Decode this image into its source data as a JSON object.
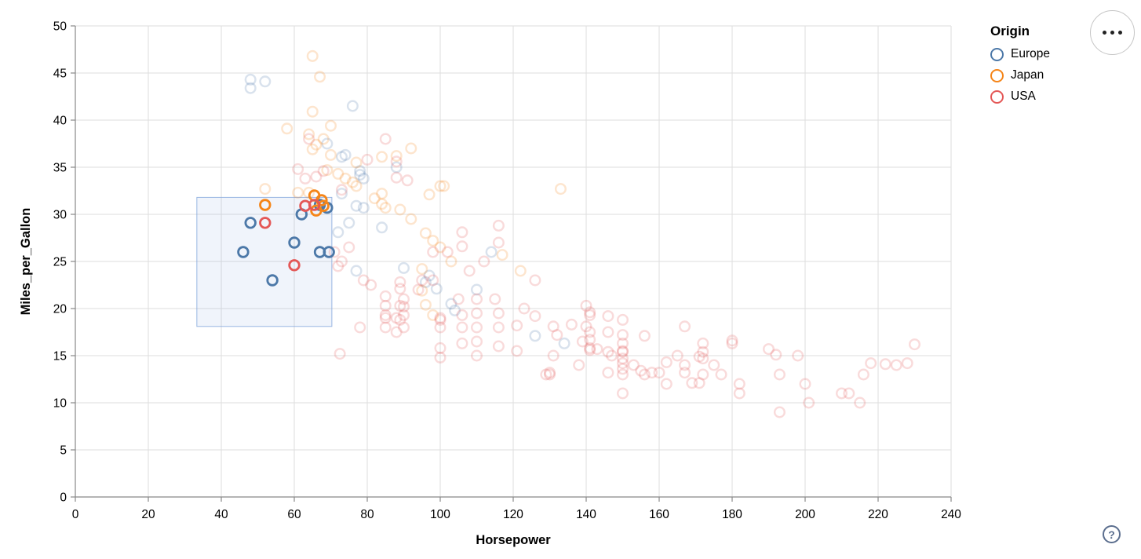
{
  "chart_data": {
    "type": "scatter",
    "xlabel": "Horsepower",
    "ylabel": "Miles_per_Gallon",
    "xlim": [
      0,
      240
    ],
    "ylim": [
      0,
      50
    ],
    "xticks": [
      0,
      20,
      40,
      60,
      80,
      100,
      120,
      140,
      160,
      180,
      200,
      220,
      240
    ],
    "yticks": [
      0,
      5,
      10,
      15,
      20,
      25,
      30,
      35,
      40,
      45,
      50
    ],
    "grid": true,
    "legend": {
      "title": "Origin",
      "position": "top-right",
      "entries": [
        {
          "label": "Europe",
          "color": "#4c78a8"
        },
        {
          "label": "Japan",
          "color": "#f58518"
        },
        {
          "label": "USA",
          "color": "#e45756"
        }
      ]
    },
    "brush": {
      "x": [
        33.3,
        70.3
      ],
      "y": [
        18.1,
        31.8
      ],
      "fill": "rgba(130,165,220,0.12)",
      "stroke": "rgba(130,165,220,0.8)"
    },
    "point_style": {
      "radius": 6.3,
      "stroke_width": 2.4,
      "unselected_opacity": 0.21
    },
    "series": [
      {
        "name": "Europe",
        "color": "#4c78a8",
        "selected": [
          [
            46,
            26
          ],
          [
            48,
            29.1
          ],
          [
            54,
            23
          ],
          [
            60,
            27
          ],
          [
            62,
            30
          ],
          [
            67,
            26
          ],
          [
            69.5,
            26
          ],
          [
            67,
            31
          ],
          [
            69,
            30.7
          ]
        ],
        "unselected": [
          [
            48,
            44.3
          ],
          [
            52,
            44.1
          ],
          [
            48,
            43.4
          ],
          [
            76,
            41.5
          ],
          [
            69,
            37.5
          ],
          [
            74,
            36.3
          ],
          [
            73,
            36.1
          ],
          [
            88,
            35
          ],
          [
            78,
            34.6
          ],
          [
            78,
            34.2
          ],
          [
            79,
            33.8
          ],
          [
            73,
            32.2
          ],
          [
            77,
            30.9
          ],
          [
            79,
            30.7
          ],
          [
            75,
            29.1
          ],
          [
            72,
            28.1
          ],
          [
            84,
            28.6
          ],
          [
            114,
            26
          ],
          [
            96,
            22.8
          ],
          [
            99,
            22.1
          ],
          [
            103,
            20.5
          ],
          [
            104,
            19.8
          ],
          [
            77,
            24
          ],
          [
            90,
            24.3
          ],
          [
            97,
            23.5
          ],
          [
            110,
            22
          ],
          [
            126,
            17.1
          ],
          [
            134,
            16.3
          ]
        ]
      },
      {
        "name": "Japan",
        "color": "#f58518",
        "selected": [
          [
            52,
            31
          ],
          [
            65.5,
            32
          ],
          [
            67.5,
            31.5
          ],
          [
            68,
            30.9
          ],
          [
            66,
            30.4
          ]
        ],
        "unselected": [
          [
            65,
            46.8
          ],
          [
            67,
            44.6
          ],
          [
            65,
            40.9
          ],
          [
            70,
            39.4
          ],
          [
            58,
            39.1
          ],
          [
            64,
            38.5
          ],
          [
            66,
            37.4
          ],
          [
            68,
            38
          ],
          [
            65,
            36.9
          ],
          [
            70,
            36.3
          ],
          [
            92,
            37
          ],
          [
            88,
            36.2
          ],
          [
            84,
            36.1
          ],
          [
            77,
            35.5
          ],
          [
            69,
            34.7
          ],
          [
            72,
            34.3
          ],
          [
            74,
            33.8
          ],
          [
            76,
            33.4
          ],
          [
            77,
            33
          ],
          [
            100,
            33
          ],
          [
            101,
            33
          ],
          [
            97,
            32.1
          ],
          [
            133,
            32.7
          ],
          [
            61,
            32.3
          ],
          [
            64,
            32.3
          ],
          [
            52,
            32.7
          ],
          [
            82,
            31.7
          ],
          [
            84,
            32.2
          ],
          [
            84,
            31.1
          ],
          [
            85,
            30.7
          ],
          [
            89,
            30.5
          ],
          [
            92,
            29.5
          ],
          [
            98,
            27.2
          ],
          [
            96,
            28
          ],
          [
            100,
            26.5
          ],
          [
            103,
            25
          ],
          [
            95,
            24.2
          ],
          [
            117,
            25.7
          ],
          [
            122,
            24
          ],
          [
            95,
            21.9
          ],
          [
            96,
            20.4
          ],
          [
            98,
            19.3
          ]
        ]
      },
      {
        "name": "USA",
        "color": "#e45756",
        "selected": [
          [
            52,
            29.1
          ],
          [
            60,
            24.6
          ],
          [
            63,
            30.9
          ],
          [
            65.5,
            31
          ]
        ],
        "unselected": [
          [
            64,
            38
          ],
          [
            85,
            38
          ],
          [
            80,
            35.8
          ],
          [
            88,
            35.6
          ],
          [
            61,
            34.8
          ],
          [
            63,
            33.8
          ],
          [
            66,
            34
          ],
          [
            68,
            34.6
          ],
          [
            88,
            33.9
          ],
          [
            91,
            33.6
          ],
          [
            73,
            32.6
          ],
          [
            106,
            28.1
          ],
          [
            106,
            26.6
          ],
          [
            116,
            28.8
          ],
          [
            116,
            27
          ],
          [
            71,
            26
          ],
          [
            73,
            25
          ],
          [
            75,
            26.5
          ],
          [
            72,
            24.5
          ],
          [
            98,
            26
          ],
          [
            102,
            26
          ],
          [
            108,
            24
          ],
          [
            112,
            25
          ],
          [
            79,
            23
          ],
          [
            81,
            22.5
          ],
          [
            85,
            21.3
          ],
          [
            85,
            20.3
          ],
          [
            85,
            19.3
          ],
          [
            85,
            19
          ],
          [
            85,
            18
          ],
          [
            78,
            18
          ],
          [
            89,
            22.8
          ],
          [
            89,
            22.1
          ],
          [
            90,
            21
          ],
          [
            89,
            20.3
          ],
          [
            90,
            19.3
          ],
          [
            89,
            18.8
          ],
          [
            90,
            18
          ],
          [
            90,
            20.2
          ],
          [
            88,
            19
          ],
          [
            88,
            17.5
          ],
          [
            94,
            22
          ],
          [
            95,
            23
          ],
          [
            98,
            23
          ],
          [
            100,
            19
          ],
          [
            100,
            18.8
          ],
          [
            100,
            18
          ],
          [
            100,
            15.8
          ],
          [
            100,
            14.8
          ],
          [
            106,
            19.3
          ],
          [
            106,
            18
          ],
          [
            106,
            16.3
          ],
          [
            105,
            21
          ],
          [
            110,
            21
          ],
          [
            110,
            19.5
          ],
          [
            110,
            18
          ],
          [
            110,
            16.5
          ],
          [
            110,
            15
          ],
          [
            115,
            21
          ],
          [
            116,
            19.5
          ],
          [
            116,
            18
          ],
          [
            116,
            16
          ],
          [
            72.5,
            15.2
          ],
          [
            121,
            15.5
          ],
          [
            121,
            18.2
          ],
          [
            123,
            20
          ],
          [
            126,
            23
          ],
          [
            126,
            19.2
          ],
          [
            129,
            13
          ],
          [
            130,
            13.2
          ],
          [
            130,
            13
          ],
          [
            131,
            18.1
          ],
          [
            131,
            15
          ],
          [
            132,
            17.2
          ],
          [
            136,
            18.3
          ],
          [
            138,
            14
          ],
          [
            139,
            16.5
          ],
          [
            140,
            20.3
          ],
          [
            140,
            18.1
          ],
          [
            141,
            19.6
          ],
          [
            141,
            19.3
          ],
          [
            141,
            17.5
          ],
          [
            141,
            16.7
          ],
          [
            141,
            15.8
          ],
          [
            141,
            15.6
          ],
          [
            143,
            15.7
          ],
          [
            146,
            19.2
          ],
          [
            146,
            17.5
          ],
          [
            146,
            15.4
          ],
          [
            147,
            15
          ],
          [
            146,
            13.2
          ],
          [
            150,
            18.8
          ],
          [
            150,
            17.2
          ],
          [
            150,
            16.3
          ],
          [
            150,
            15.5
          ],
          [
            150,
            15.4
          ],
          [
            150,
            14.7
          ],
          [
            150,
            14.2
          ],
          [
            150,
            13.6
          ],
          [
            150,
            13
          ],
          [
            150,
            11
          ],
          [
            153,
            14
          ],
          [
            155,
            13.4
          ],
          [
            156,
            17.1
          ],
          [
            156,
            13
          ],
          [
            158,
            13.2
          ],
          [
            160,
            13.2
          ],
          [
            162,
            14.3
          ],
          [
            162,
            12
          ],
          [
            165,
            15
          ],
          [
            167,
            14
          ],
          [
            167,
            13.2
          ],
          [
            167,
            18.1
          ],
          [
            169,
            12.1
          ],
          [
            171,
            14.9
          ],
          [
            171,
            12.1
          ],
          [
            172,
            16.3
          ],
          [
            172,
            15.4
          ],
          [
            172,
            14.7
          ],
          [
            172,
            13
          ],
          [
            175,
            14
          ],
          [
            177,
            13
          ],
          [
            180,
            16.6
          ],
          [
            180,
            16.3
          ],
          [
            182,
            12
          ],
          [
            182,
            11
          ],
          [
            190,
            15.7
          ],
          [
            192,
            15.1
          ],
          [
            193,
            13
          ],
          [
            198,
            15
          ],
          [
            200,
            12
          ],
          [
            201,
            10
          ],
          [
            193,
            9
          ],
          [
            210,
            11
          ],
          [
            212,
            11
          ],
          [
            215,
            10
          ],
          [
            216,
            13
          ],
          [
            218,
            14.2
          ],
          [
            222,
            14.1
          ],
          [
            225,
            14
          ],
          [
            228,
            14.2
          ],
          [
            230,
            16.2
          ]
        ]
      }
    ]
  },
  "controls": {
    "menu_tooltip": "More options",
    "help_label": "?"
  }
}
